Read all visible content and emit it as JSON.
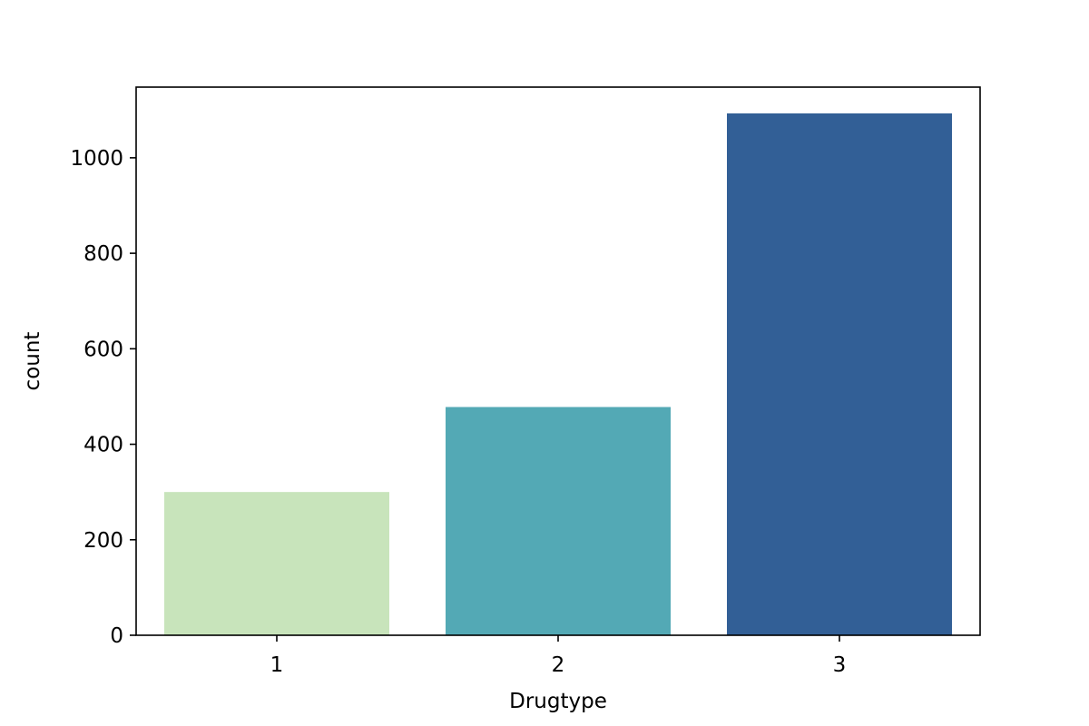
{
  "chart_data": {
    "type": "bar",
    "categories": [
      "1",
      "2",
      "3"
    ],
    "values": [
      300,
      478,
      1093
    ],
    "colors": [
      "#c8e4bb",
      "#53a9b5",
      "#325f96"
    ],
    "xlabel": "Drugtype",
    "ylabel": "count",
    "ylim": [
      0,
      1148
    ],
    "yticks": [
      0,
      200,
      400,
      600,
      800,
      1000
    ],
    "grid": false,
    "legend": "none"
  }
}
